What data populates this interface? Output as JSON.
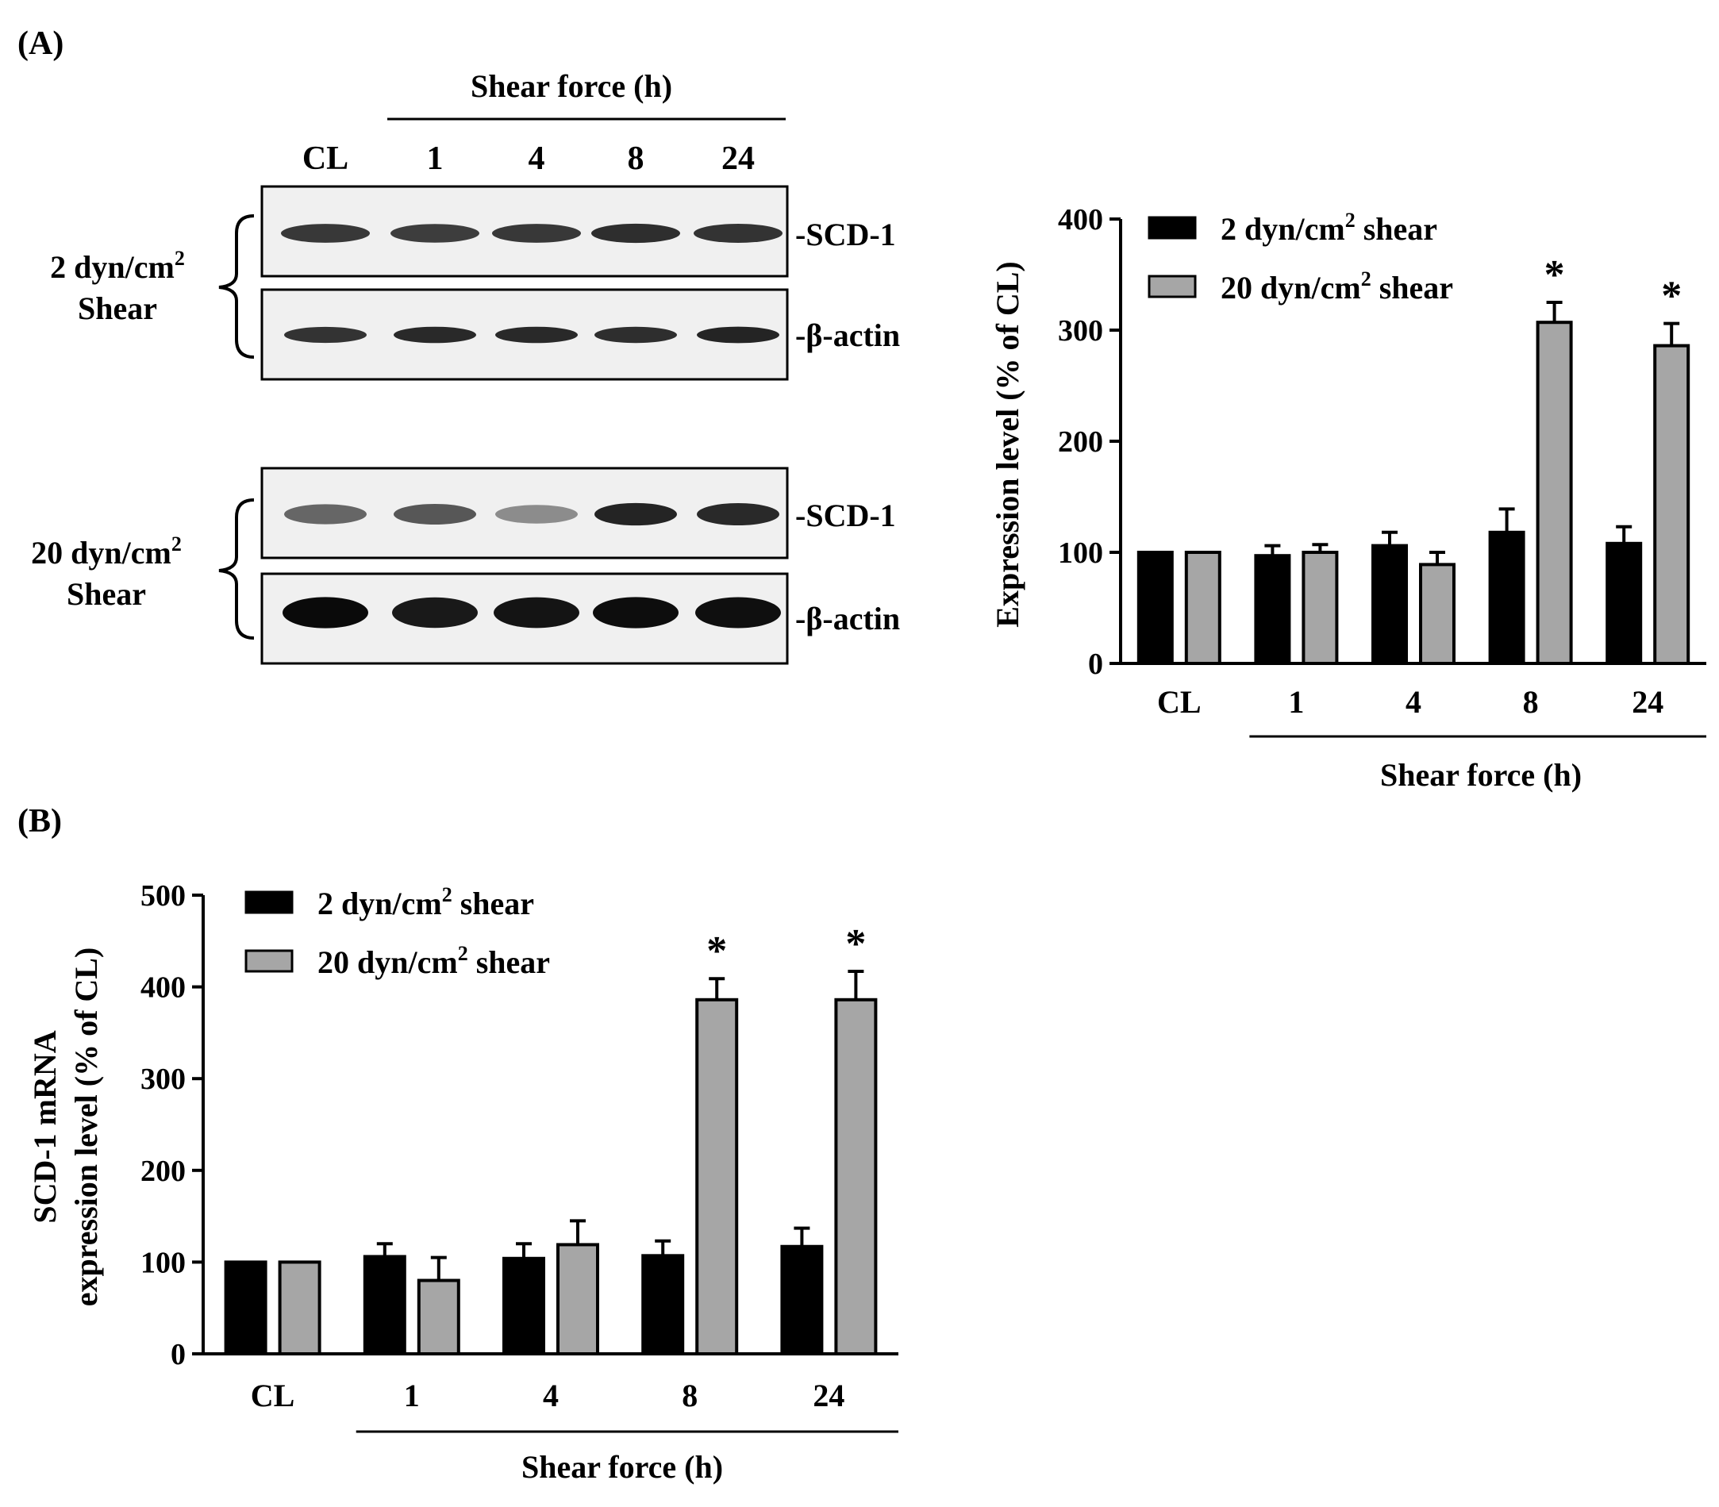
{
  "panels": {
    "a_label": "(A)",
    "b_label": "(B)"
  },
  "western_blot": {
    "header": "Shear force (h)",
    "lanes": [
      "CL",
      "1",
      "4",
      "8",
      "24"
    ],
    "groups": [
      {
        "line1": "2 dyn/cm",
        "sup": "2",
        "line2": "Shear",
        "bands": [
          "-SCD-1",
          "-β-actin"
        ],
        "scd1_intensity": [
          0.78,
          0.76,
          0.78,
          0.82,
          0.8
        ],
        "actin_intensity": [
          0.8,
          0.84,
          0.84,
          0.82,
          0.86
        ]
      },
      {
        "line1": "20 dyn/cm",
        "sup": "2",
        "line2": "Shear",
        "bands": [
          "-SCD-1",
          "-β-actin"
        ],
        "scd1_intensity": [
          0.6,
          0.66,
          0.45,
          0.86,
          0.84
        ],
        "actin_intensity": [
          0.96,
          0.9,
          0.92,
          0.95,
          0.94
        ]
      }
    ]
  },
  "chart_data": [
    {
      "type": "bar",
      "panel": "A",
      "categories": [
        "CL",
        "1",
        "4",
        "8",
        "24"
      ],
      "xlabel": "Shear force (h)",
      "ylabel": "Expression level (% of CL)",
      "ylim": [
        0,
        400
      ],
      "yticks": [
        0,
        100,
        200,
        300,
        400
      ],
      "legend_position": "top-left",
      "series": [
        {
          "name": "2 dyn/cm² shear",
          "legend_text": "2 dyn/cm",
          "legend_sup": "2",
          "legend_tail": " shear",
          "color": "#000000",
          "values": [
            100,
            97,
            106,
            118,
            108
          ],
          "errors": [
            0,
            9,
            12,
            21,
            15
          ]
        },
        {
          "name": "20 dyn/cm² shear",
          "legend_text": "20 dyn/cm",
          "legend_sup": "2",
          "legend_tail": " shear",
          "color": "#a6a6a6",
          "values": [
            100,
            100,
            89,
            307,
            286
          ],
          "errors": [
            0,
            7,
            11,
            18,
            20
          ]
        }
      ],
      "significance": [
        {
          "series": 1,
          "index": 3,
          "label": "*"
        },
        {
          "series": 1,
          "index": 4,
          "label": "*"
        }
      ]
    },
    {
      "type": "bar",
      "panel": "B",
      "categories": [
        "CL",
        "1",
        "4",
        "8",
        "24"
      ],
      "xlabel": "Shear force (h)",
      "ylabel": "SCD-1 mRNA expression level (% of CL)",
      "ylabel_lines": [
        "SCD-1 mRNA",
        "expression level (% of CL)"
      ],
      "ylim": [
        0,
        500
      ],
      "yticks": [
        0,
        100,
        200,
        300,
        400,
        500
      ],
      "legend_position": "top-left",
      "series": [
        {
          "name": "2 dyn/cm² shear",
          "legend_text": "2 dyn/cm",
          "legend_sup": "2",
          "legend_tail": " shear",
          "color": "#000000",
          "values": [
            100,
            106,
            104,
            107,
            117
          ],
          "errors": [
            0,
            14,
            16,
            16,
            20
          ]
        },
        {
          "name": "20 dyn/cm² shear",
          "legend_text": "20 dyn/cm",
          "legend_sup": "2",
          "legend_tail": " shear",
          "color": "#a6a6a6",
          "values": [
            100,
            80,
            119,
            386,
            386
          ],
          "errors": [
            0,
            25,
            26,
            23,
            31
          ]
        }
      ],
      "significance": [
        {
          "series": 1,
          "index": 3,
          "label": "*"
        },
        {
          "series": 1,
          "index": 4,
          "label": "*"
        }
      ]
    }
  ]
}
